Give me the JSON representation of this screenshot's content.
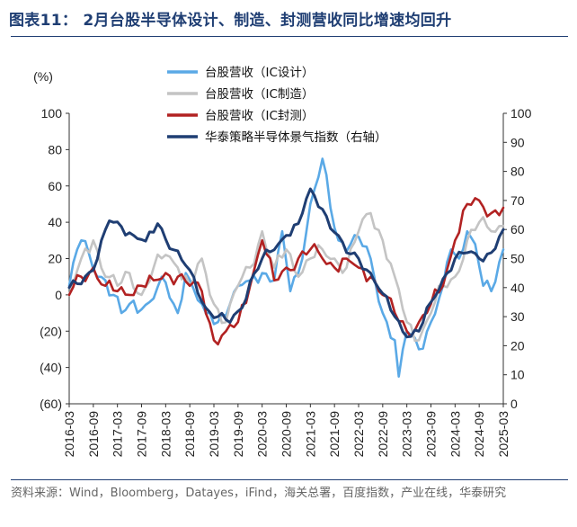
{
  "header": {
    "title": "图表11： 2月台股半导体设计、制造、封测营收同比增速均回升"
  },
  "footer": {
    "source": "资料来源：Wind，Bloomberg，Datayes，iFind，海关总署，百度指数，产业在线，华泰研究"
  },
  "chart_data": {
    "type": "line",
    "y_unit_label": "(%)",
    "ylim_left": [
      -60,
      100
    ],
    "yticks_left": [
      "100",
      "80",
      "60",
      "40",
      "20",
      "0",
      "(20)",
      "(40)",
      "(60)"
    ],
    "ylim_right": [
      0,
      100
    ],
    "yticks_right": [
      "100",
      "90",
      "80",
      "70",
      "60",
      "50",
      "40",
      "30",
      "20",
      "10",
      "0"
    ],
    "x_labels": [
      "2016-03",
      "2016-09",
      "2017-03",
      "2017-09",
      "2018-03",
      "2018-09",
      "2019-03",
      "2019-09",
      "2020-03",
      "2020-09",
      "2021-03",
      "2021-09",
      "2022-03",
      "2022-09",
      "2023-03",
      "2023-09",
      "2024-03",
      "2024-09",
      "2025-03"
    ],
    "x_start": "2016-03",
    "x_end": "2025-03",
    "legend_position": "top-center",
    "series": [
      {
        "name": "台股营收（IC设计）",
        "color": "#5aa9e6",
        "axis": "left",
        "key_points": [
          [
            "2016-03",
            5
          ],
          [
            "2016-05",
            25
          ],
          [
            "2016-06",
            30
          ],
          [
            "2016-08",
            22
          ],
          [
            "2016-10",
            10
          ],
          [
            "2016-12",
            8
          ],
          [
            "2017-02",
            0
          ],
          [
            "2017-04",
            -10
          ],
          [
            "2017-06",
            -5
          ],
          [
            "2017-09",
            -8
          ],
          [
            "2017-12",
            -2
          ],
          [
            "2018-02",
            10
          ],
          [
            "2018-05",
            -5
          ],
          [
            "2018-06",
            -10
          ],
          [
            "2018-08",
            12
          ],
          [
            "2018-10",
            3
          ],
          [
            "2019-01",
            -10
          ],
          [
            "2019-04",
            -15
          ],
          [
            "2019-07",
            -5
          ],
          [
            "2019-09",
            5
          ],
          [
            "2019-12",
            8
          ],
          [
            "2020-03",
            12
          ],
          [
            "2020-06",
            8
          ],
          [
            "2020-08",
            35
          ],
          [
            "2020-10",
            2
          ],
          [
            "2020-12",
            12
          ],
          [
            "2021-03",
            50
          ],
          [
            "2021-06",
            75
          ],
          [
            "2021-08",
            48
          ],
          [
            "2021-10",
            30
          ],
          [
            "2022-01",
            28
          ],
          [
            "2022-03",
            32
          ],
          [
            "2022-06",
            20
          ],
          [
            "2022-09",
            -10
          ],
          [
            "2022-12",
            -25
          ],
          [
            "2023-01",
            -45
          ],
          [
            "2023-03",
            -20
          ],
          [
            "2023-06",
            -30
          ],
          [
            "2023-09",
            -15
          ],
          [
            "2023-12",
            5
          ],
          [
            "2024-02",
            25
          ],
          [
            "2024-04",
            20
          ],
          [
            "2024-06",
            35
          ],
          [
            "2024-08",
            28
          ],
          [
            "2024-10",
            5
          ],
          [
            "2024-12",
            2
          ],
          [
            "2025-02",
            18
          ],
          [
            "2025-03",
            25
          ]
        ]
      },
      {
        "name": "台股营收（IC制造）",
        "color": "#c4c4c4",
        "axis": "left",
        "key_points": [
          [
            "2016-03",
            0
          ],
          [
            "2016-06",
            20
          ],
          [
            "2016-09",
            30
          ],
          [
            "2016-12",
            10
          ],
          [
            "2017-03",
            5
          ],
          [
            "2017-06",
            12
          ],
          [
            "2017-09",
            0
          ],
          [
            "2017-12",
            15
          ],
          [
            "2018-03",
            22
          ],
          [
            "2018-06",
            15
          ],
          [
            "2018-09",
            5
          ],
          [
            "2018-12",
            20
          ],
          [
            "2019-03",
            -5
          ],
          [
            "2019-06",
            -15
          ],
          [
            "2019-09",
            5
          ],
          [
            "2019-12",
            15
          ],
          [
            "2020-03",
            35
          ],
          [
            "2020-06",
            15
          ],
          [
            "2020-09",
            25
          ],
          [
            "2020-12",
            10
          ],
          [
            "2021-03",
            20
          ],
          [
            "2021-06",
            25
          ],
          [
            "2021-09",
            20
          ],
          [
            "2021-12",
            15
          ],
          [
            "2022-03",
            35
          ],
          [
            "2022-06",
            45
          ],
          [
            "2022-09",
            30
          ],
          [
            "2022-12",
            10
          ],
          [
            "2023-03",
            -15
          ],
          [
            "2023-06",
            -25
          ],
          [
            "2023-09",
            -10
          ],
          [
            "2023-12",
            5
          ],
          [
            "2024-03",
            10
          ],
          [
            "2024-06",
            30
          ],
          [
            "2024-09",
            40
          ],
          [
            "2024-12",
            35
          ],
          [
            "2025-03",
            38
          ]
        ]
      },
      {
        "name": "台股营收（IC封测）",
        "color": "#b22222",
        "axis": "left",
        "key_points": [
          [
            "2016-03",
            0
          ],
          [
            "2016-06",
            10
          ],
          [
            "2016-09",
            15
          ],
          [
            "2016-12",
            5
          ],
          [
            "2017-03",
            2
          ],
          [
            "2017-06",
            0
          ],
          [
            "2017-09",
            5
          ],
          [
            "2017-12",
            8
          ],
          [
            "2018-03",
            12
          ],
          [
            "2018-06",
            10
          ],
          [
            "2018-09",
            5
          ],
          [
            "2018-12",
            2
          ],
          [
            "2019-03",
            -25
          ],
          [
            "2019-06",
            -20
          ],
          [
            "2019-09",
            -15
          ],
          [
            "2019-12",
            5
          ],
          [
            "2020-03",
            30
          ],
          [
            "2020-06",
            8
          ],
          [
            "2020-09",
            15
          ],
          [
            "2020-12",
            20
          ],
          [
            "2021-03",
            25
          ],
          [
            "2021-06",
            20
          ],
          [
            "2021-09",
            15
          ],
          [
            "2021-12",
            20
          ],
          [
            "2022-03",
            15
          ],
          [
            "2022-06",
            10
          ],
          [
            "2022-09",
            0
          ],
          [
            "2022-12",
            -10
          ],
          [
            "2023-03",
            -20
          ],
          [
            "2023-06",
            -15
          ],
          [
            "2023-09",
            -5
          ],
          [
            "2023-12",
            5
          ],
          [
            "2024-03",
            30
          ],
          [
            "2024-06",
            50
          ],
          [
            "2024-09",
            52
          ],
          [
            "2024-12",
            45
          ],
          [
            "2025-03",
            48
          ]
        ]
      },
      {
        "name": "华泰策略半导体景气指数（右轴）",
        "color": "#1f3e73",
        "axis": "right",
        "key_points": [
          [
            "2016-03",
            40
          ],
          [
            "2016-09",
            46
          ],
          [
            "2017-01",
            63
          ],
          [
            "2017-04",
            61
          ],
          [
            "2017-07",
            58
          ],
          [
            "2017-10",
            56
          ],
          [
            "2018-01",
            62
          ],
          [
            "2018-05",
            53
          ],
          [
            "2018-09",
            46
          ],
          [
            "2019-01",
            33
          ],
          [
            "2019-04",
            30
          ],
          [
            "2019-07",
            28
          ],
          [
            "2019-10",
            33
          ],
          [
            "2019-12",
            42
          ],
          [
            "2020-03",
            50
          ],
          [
            "2020-06",
            53
          ],
          [
            "2020-09",
            58
          ],
          [
            "2020-12",
            62
          ],
          [
            "2021-03",
            74
          ],
          [
            "2021-06",
            67
          ],
          [
            "2021-09",
            59
          ],
          [
            "2021-12",
            52
          ],
          [
            "2022-03",
            50
          ],
          [
            "2022-06",
            45
          ],
          [
            "2022-09",
            38
          ],
          [
            "2022-12",
            30
          ],
          [
            "2023-03",
            23
          ],
          [
            "2023-06",
            25
          ],
          [
            "2023-09",
            35
          ],
          [
            "2023-12",
            43
          ],
          [
            "2024-03",
            50
          ],
          [
            "2024-06",
            52
          ],
          [
            "2024-09",
            50
          ],
          [
            "2024-12",
            52
          ],
          [
            "2025-03",
            60
          ]
        ]
      }
    ]
  }
}
